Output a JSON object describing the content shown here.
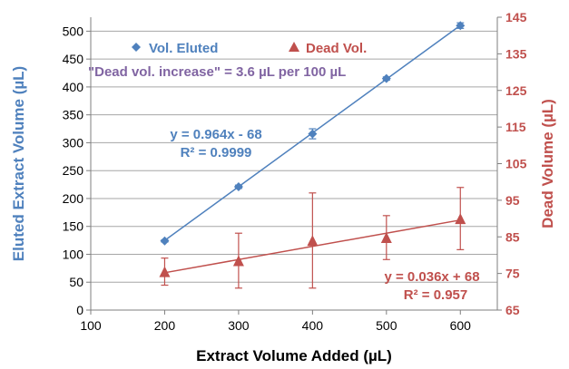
{
  "chart_data": {
    "type": "scatter",
    "x": [
      200,
      300,
      400,
      500,
      600
    ],
    "xlabel": "Extract Volume Added (µL)",
    "xlim": [
      100,
      650
    ],
    "xticks": [
      100,
      200,
      300,
      400,
      500,
      600
    ],
    "ylabel_left": "Eluted Extract Volume (µL)",
    "ylim_left": [
      0,
      525
    ],
    "yticks_left": [
      0,
      50,
      100,
      150,
      200,
      250,
      300,
      350,
      400,
      450,
      500
    ],
    "ylabel_right": "Dead Volume (µL)",
    "ylim_right": [
      65,
      145
    ],
    "yticks_right": [
      65,
      75,
      85,
      95,
      105,
      115,
      125,
      135,
      145
    ],
    "grid": "horizontal",
    "legend_position": "top-left",
    "series": [
      {
        "name": "Vol. Eluted",
        "axis": "left",
        "marker": "diamond",
        "color": "#4F81BD",
        "values": [
          124,
          221,
          316,
          415,
          510
        ],
        "errors": [
          2,
          3,
          9,
          3,
          5
        ],
        "fit": {
          "slope": 0.964,
          "intercept": -68
        }
      },
      {
        "name": "Dead Vol.",
        "axis": "right",
        "marker": "triangle",
        "color": "#C0504D",
        "values": [
          75.5,
          78.5,
          84,
          84.8,
          90
        ],
        "errors": [
          3.7,
          7.5,
          13,
          6,
          8.5
        ],
        "fit": {
          "slope": 0.036,
          "intercept": 68
        }
      }
    ],
    "annotations": {
      "increase_note": "\"Dead vol. increase\" = 3.6 µL per 100 µL",
      "eluted_equation": "y = 0.964x - 68",
      "eluted_r2": "R² = 0.9999",
      "dead_equation": "y = 0.036x + 68",
      "dead_r2": "R² = 0.957"
    },
    "colors": {
      "eluted": "#4F81BD",
      "dead": "#C0504D",
      "note": "#8064A2",
      "grid": "#A6A6A6",
      "axis_text": "#000000"
    }
  }
}
